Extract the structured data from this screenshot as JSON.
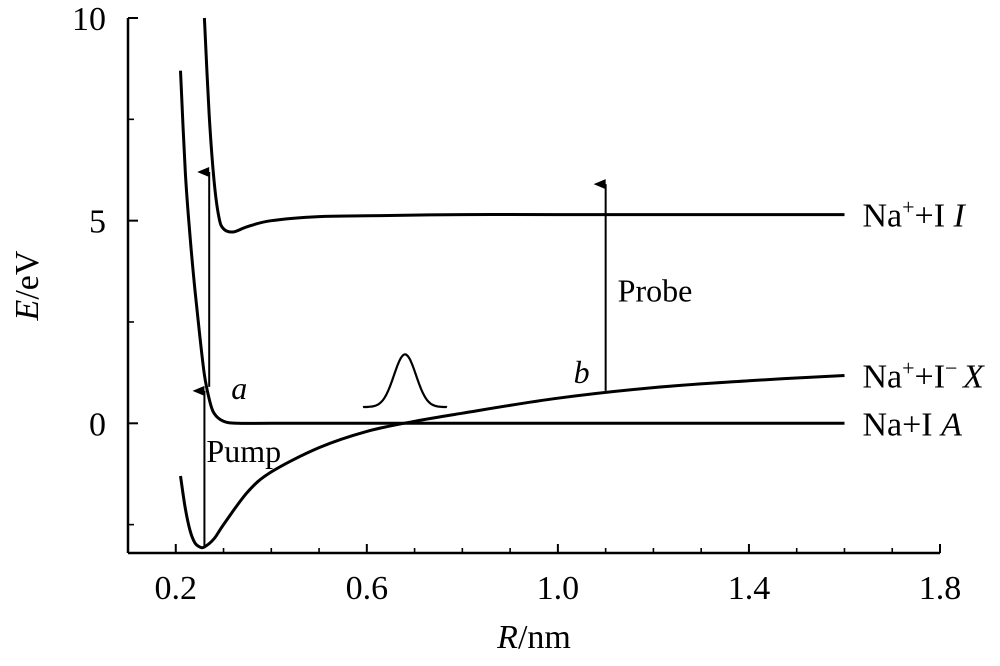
{
  "chart_data": {
    "type": "line",
    "title": "",
    "xlabel": {
      "var": "R",
      "unit": "/nm"
    },
    "ylabel": {
      "var": "E",
      "unit": "/eV"
    },
    "xlim": [
      0.1,
      1.8
    ],
    "ylim": [
      -3.2,
      10
    ],
    "xticks": [
      0.2,
      0.6,
      1.0,
      1.4,
      1.8
    ],
    "xtick_labels": [
      "0.2",
      "0.6",
      "1.0",
      "1.4",
      "1.8"
    ],
    "yticks": [
      0,
      5,
      10
    ],
    "ytick_labels": [
      "0",
      "5",
      "10"
    ],
    "grid": false,
    "legend": "none",
    "series": [
      {
        "name": "Na⁺+I I",
        "label_parts": {
          "base": "Na",
          "sup1": "+",
          "mid": "+I ",
          "sup2": "",
          "state": "I"
        },
        "x": [
          0.26,
          0.27,
          0.28,
          0.29,
          0.3,
          0.32,
          0.35,
          0.4,
          0.5,
          0.6,
          0.8,
          1.0,
          1.3,
          1.6
        ],
        "y": [
          10.0,
          7.6,
          6.0,
          5.1,
          4.8,
          4.72,
          4.85,
          5.0,
          5.1,
          5.12,
          5.15,
          5.15,
          5.15,
          5.15
        ]
      },
      {
        "name": "Na⁺+I⁻ X",
        "label_parts": {
          "base": "Na",
          "sup1": "+",
          "mid": "+I",
          "sup2": "−",
          "state": "X"
        },
        "x": [
          0.21,
          0.22,
          0.23,
          0.24,
          0.25,
          0.26,
          0.28,
          0.3,
          0.35,
          0.4,
          0.5,
          0.6,
          0.7,
          0.8,
          1.0,
          1.2,
          1.4,
          1.6
        ],
        "y": [
          -1.3,
          -2.1,
          -2.65,
          -2.95,
          -3.05,
          -3.05,
          -2.85,
          -2.5,
          -1.7,
          -1.2,
          -0.6,
          -0.2,
          0.05,
          0.25,
          0.62,
          0.88,
          1.05,
          1.18
        ]
      },
      {
        "name": "Na+I A",
        "label_parts": {
          "base": "Na+I ",
          "sup1": "",
          "mid": "",
          "sup2": "",
          "state": "A"
        },
        "x": [
          0.21,
          0.22,
          0.23,
          0.24,
          0.25,
          0.26,
          0.27,
          0.28,
          0.3,
          0.33,
          0.4,
          0.6,
          1.0,
          1.6
        ],
        "y": [
          8.7,
          6.2,
          4.6,
          3.3,
          2.2,
          1.2,
          0.6,
          0.25,
          0.05,
          0.0,
          0.0,
          0.0,
          0.0,
          0.0
        ]
      }
    ],
    "annotations": {
      "pump": {
        "text": "Pump",
        "x": 0.26,
        "from_y": -3.05,
        "to_y": 0.8
      },
      "probe": {
        "text": "Probe",
        "x": 1.1,
        "from_y": 0.8,
        "to_y": 5.9
      },
      "a_vertical": {
        "x": 0.27,
        "from_y": 0.9,
        "to_y": 6.2
      },
      "label_a": "a",
      "label_b": "b",
      "wavepacket": {
        "center_x": 0.68,
        "peak_y": 1.7,
        "base_y": 0.4
      }
    }
  }
}
